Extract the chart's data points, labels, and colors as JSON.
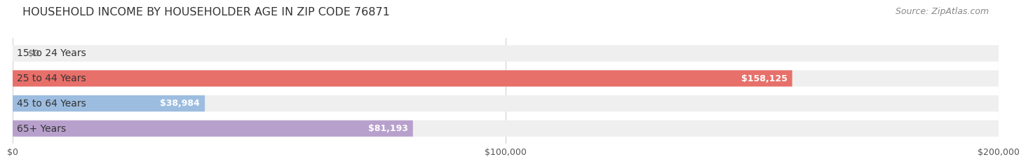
{
  "title": "HOUSEHOLD INCOME BY HOUSEHOLDER AGE IN ZIP CODE 76871",
  "source": "Source: ZipAtlas.com",
  "categories": [
    "15 to 24 Years",
    "25 to 44 Years",
    "45 to 64 Years",
    "65+ Years"
  ],
  "values": [
    0,
    158125,
    38984,
    81193
  ],
  "labels": [
    "$0",
    "$158,125",
    "$38,984",
    "$81,193"
  ],
  "bar_colors": [
    "#f0bc8a",
    "#e8706a",
    "#9dbde0",
    "#b8a0cc"
  ],
  "bar_bg_color": "#efefef",
  "xlim": [
    0,
    200000
  ],
  "xtick_labels": [
    "$0",
    "$100,000",
    "$200,000"
  ],
  "xtick_values": [
    0,
    100000,
    200000
  ],
  "title_fontsize": 11.5,
  "source_fontsize": 9,
  "label_fontsize": 9,
  "category_fontsize": 10,
  "background_color": "#ffffff",
  "grid_color": "#d0d0d0",
  "label_inside_color": "#ffffff",
  "label_outside_color": "#666666",
  "cat_label_color": "#333333"
}
